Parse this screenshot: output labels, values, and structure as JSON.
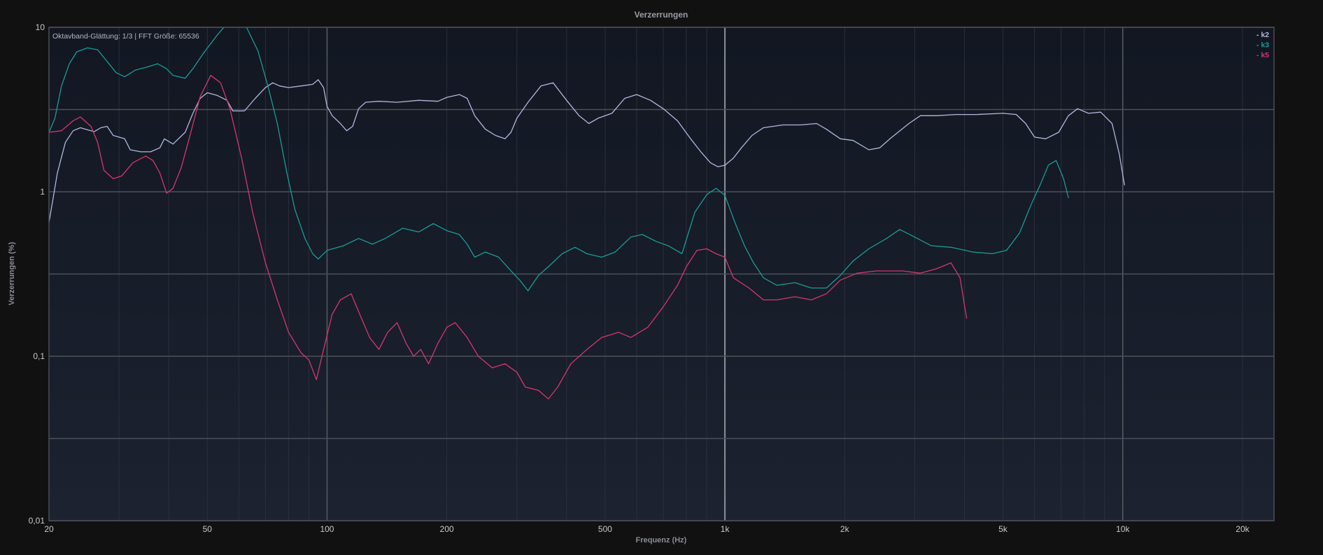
{
  "chart_data": {
    "type": "line",
    "title": "Verzerrungen",
    "subtitle": "Oktavband-Glättung: 1/3 | FFT Größe: 65536",
    "xlabel": "Frequenz (Hz)",
    "ylabel": "Verzerrungen (%)",
    "x_scale": "log",
    "y_scale": "log",
    "xlim": [
      20,
      24000
    ],
    "ylim": [
      0.01,
      10
    ],
    "grid": true,
    "legend_position": "top-right",
    "x_ticks": [
      {
        "value": 20,
        "label": "20"
      },
      {
        "value": 50,
        "label": "50"
      },
      {
        "value": 100,
        "label": "100"
      },
      {
        "value": 200,
        "label": "200"
      },
      {
        "value": 500,
        "label": "500"
      },
      {
        "value": 1000,
        "label": "1k"
      },
      {
        "value": 2000,
        "label": "2k"
      },
      {
        "value": 5000,
        "label": "5k"
      },
      {
        "value": 10000,
        "label": "10k"
      },
      {
        "value": 20000,
        "label": "20k"
      }
    ],
    "y_ticks": [
      {
        "value": 10,
        "label": "10"
      },
      {
        "value": 1,
        "label": "1"
      },
      {
        "value": 0.1,
        "label": "0,1"
      },
      {
        "value": 0.01,
        "label": "0,01"
      }
    ],
    "series": [
      {
        "name": "- k2",
        "color": "#b4b7de",
        "points": [
          [
            20,
            0.65
          ],
          [
            21,
            1.3
          ],
          [
            22,
            2.0
          ],
          [
            23,
            2.35
          ],
          [
            24,
            2.45
          ],
          [
            25,
            2.38
          ],
          [
            26,
            2.32
          ],
          [
            27,
            2.45
          ],
          [
            28,
            2.5
          ],
          [
            29,
            2.2
          ],
          [
            31,
            2.1
          ],
          [
            32,
            1.8
          ],
          [
            34,
            1.75
          ],
          [
            36,
            1.75
          ],
          [
            38,
            1.85
          ],
          [
            39,
            2.1
          ],
          [
            41,
            1.95
          ],
          [
            44,
            2.3
          ],
          [
            46,
            3.0
          ],
          [
            48,
            3.7
          ],
          [
            50,
            4.0
          ],
          [
            53,
            3.85
          ],
          [
            56,
            3.6
          ],
          [
            58,
            3.1
          ],
          [
            62,
            3.1
          ],
          [
            66,
            3.7
          ],
          [
            70,
            4.3
          ],
          [
            73,
            4.6
          ],
          [
            76,
            4.4
          ],
          [
            80,
            4.3
          ],
          [
            86,
            4.4
          ],
          [
            92,
            4.5
          ],
          [
            95,
            4.8
          ],
          [
            98,
            4.3
          ],
          [
            100,
            3.3
          ],
          [
            103,
            2.9
          ],
          [
            108,
            2.6
          ],
          [
            112,
            2.35
          ],
          [
            116,
            2.5
          ],
          [
            120,
            3.2
          ],
          [
            125,
            3.5
          ],
          [
            135,
            3.55
          ],
          [
            150,
            3.5
          ],
          [
            170,
            3.6
          ],
          [
            190,
            3.55
          ],
          [
            200,
            3.75
          ],
          [
            215,
            3.9
          ],
          [
            225,
            3.7
          ],
          [
            235,
            2.9
          ],
          [
            250,
            2.4
          ],
          [
            265,
            2.2
          ],
          [
            280,
            2.1
          ],
          [
            290,
            2.3
          ],
          [
            300,
            2.8
          ],
          [
            320,
            3.5
          ],
          [
            345,
            4.4
          ],
          [
            370,
            4.6
          ],
          [
            400,
            3.6
          ],
          [
            430,
            2.9
          ],
          [
            455,
            2.6
          ],
          [
            480,
            2.8
          ],
          [
            520,
            3.0
          ],
          [
            560,
            3.7
          ],
          [
            600,
            3.9
          ],
          [
            650,
            3.6
          ],
          [
            700,
            3.2
          ],
          [
            760,
            2.7
          ],
          [
            820,
            2.1
          ],
          [
            870,
            1.75
          ],
          [
            920,
            1.5
          ],
          [
            960,
            1.42
          ],
          [
            1000,
            1.45
          ],
          [
            1050,
            1.6
          ],
          [
            1100,
            1.85
          ],
          [
            1170,
            2.2
          ],
          [
            1250,
            2.45
          ],
          [
            1400,
            2.55
          ],
          [
            1550,
            2.55
          ],
          [
            1700,
            2.6
          ],
          [
            1800,
            2.4
          ],
          [
            1950,
            2.1
          ],
          [
            2100,
            2.05
          ],
          [
            2300,
            1.8
          ],
          [
            2450,
            1.85
          ],
          [
            2600,
            2.1
          ],
          [
            2900,
            2.6
          ],
          [
            3100,
            2.9
          ],
          [
            3400,
            2.9
          ],
          [
            3800,
            2.95
          ],
          [
            4300,
            2.95
          ],
          [
            5000,
            3.0
          ],
          [
            5400,
            2.95
          ],
          [
            5700,
            2.6
          ],
          [
            6000,
            2.15
          ],
          [
            6400,
            2.1
          ],
          [
            6900,
            2.3
          ],
          [
            7300,
            2.9
          ],
          [
            7700,
            3.2
          ],
          [
            8200,
            3.0
          ],
          [
            8800,
            3.05
          ],
          [
            9400,
            2.6
          ],
          [
            9800,
            1.7
          ],
          [
            10100,
            1.1
          ]
        ]
      },
      {
        "name": "- k3",
        "color": "#1a9c96",
        "points": [
          [
            20,
            2.3
          ],
          [
            20.7,
            2.8
          ],
          [
            21.5,
            4.4
          ],
          [
            22.5,
            6.0
          ],
          [
            23.5,
            7.1
          ],
          [
            25,
            7.5
          ],
          [
            26.5,
            7.3
          ],
          [
            28,
            6.2
          ],
          [
            29.5,
            5.3
          ],
          [
            31,
            5.0
          ],
          [
            33,
            5.5
          ],
          [
            35,
            5.7
          ],
          [
            37.5,
            6.0
          ],
          [
            39.5,
            5.6
          ],
          [
            41,
            5.1
          ],
          [
            44,
            4.9
          ],
          [
            46,
            5.6
          ],
          [
            49,
            7.0
          ],
          [
            53,
            9.0
          ],
          [
            56,
            10.5
          ],
          [
            60,
            11.5
          ],
          [
            63,
            9.8
          ],
          [
            67,
            7.2
          ],
          [
            71,
            4.4
          ],
          [
            75,
            2.6
          ],
          [
            79,
            1.35
          ],
          [
            83,
            0.78
          ],
          [
            88,
            0.52
          ],
          [
            92,
            0.42
          ],
          [
            95,
            0.39
          ],
          [
            100,
            0.44
          ],
          [
            110,
            0.47
          ],
          [
            120,
            0.52
          ],
          [
            130,
            0.48
          ],
          [
            140,
            0.52
          ],
          [
            155,
            0.6
          ],
          [
            170,
            0.57
          ],
          [
            185,
            0.64
          ],
          [
            200,
            0.58
          ],
          [
            215,
            0.55
          ],
          [
            225,
            0.48
          ],
          [
            235,
            0.4
          ],
          [
            250,
            0.43
          ],
          [
            270,
            0.4
          ],
          [
            290,
            0.33
          ],
          [
            305,
            0.29
          ],
          [
            320,
            0.25
          ],
          [
            340,
            0.31
          ],
          [
            360,
            0.35
          ],
          [
            390,
            0.42
          ],
          [
            420,
            0.46
          ],
          [
            450,
            0.42
          ],
          [
            490,
            0.4
          ],
          [
            530,
            0.43
          ],
          [
            580,
            0.53
          ],
          [
            620,
            0.55
          ],
          [
            670,
            0.5
          ],
          [
            720,
            0.47
          ],
          [
            780,
            0.42
          ],
          [
            840,
            0.75
          ],
          [
            900,
            0.96
          ],
          [
            950,
            1.05
          ],
          [
            1000,
            0.95
          ],
          [
            1060,
            0.65
          ],
          [
            1120,
            0.47
          ],
          [
            1180,
            0.37
          ],
          [
            1250,
            0.3
          ],
          [
            1350,
            0.27
          ],
          [
            1500,
            0.28
          ],
          [
            1650,
            0.26
          ],
          [
            1800,
            0.26
          ],
          [
            1950,
            0.31
          ],
          [
            2100,
            0.38
          ],
          [
            2300,
            0.45
          ],
          [
            2550,
            0.52
          ],
          [
            2750,
            0.59
          ],
          [
            3000,
            0.53
          ],
          [
            3300,
            0.47
          ],
          [
            3700,
            0.46
          ],
          [
            4200,
            0.43
          ],
          [
            4700,
            0.42
          ],
          [
            5100,
            0.44
          ],
          [
            5500,
            0.56
          ],
          [
            5900,
            0.85
          ],
          [
            6200,
            1.1
          ],
          [
            6500,
            1.45
          ],
          [
            6800,
            1.55
          ],
          [
            7100,
            1.2
          ],
          [
            7300,
            0.92
          ]
        ]
      },
      {
        "name": "- k5",
        "color": "#d4376e",
        "points": [
          [
            20,
            2.3
          ],
          [
            21.5,
            2.35
          ],
          [
            23,
            2.7
          ],
          [
            24,
            2.85
          ],
          [
            25.5,
            2.5
          ],
          [
            26.5,
            2.0
          ],
          [
            27.5,
            1.35
          ],
          [
            29,
            1.2
          ],
          [
            30.5,
            1.25
          ],
          [
            32.5,
            1.5
          ],
          [
            35,
            1.65
          ],
          [
            36.5,
            1.55
          ],
          [
            38,
            1.3
          ],
          [
            39.5,
            0.98
          ],
          [
            41,
            1.05
          ],
          [
            43,
            1.4
          ],
          [
            45,
            2.1
          ],
          [
            48,
            3.8
          ],
          [
            51,
            5.1
          ],
          [
            54,
            4.6
          ],
          [
            57,
            3.2
          ],
          [
            61,
            1.6
          ],
          [
            65,
            0.75
          ],
          [
            70,
            0.37
          ],
          [
            75,
            0.22
          ],
          [
            80,
            0.14
          ],
          [
            86,
            0.105
          ],
          [
            90,
            0.095
          ],
          [
            94,
            0.072
          ],
          [
            98,
            0.11
          ],
          [
            103,
            0.18
          ],
          [
            108,
            0.22
          ],
          [
            115,
            0.24
          ],
          [
            122,
            0.17
          ],
          [
            128,
            0.13
          ],
          [
            135,
            0.11
          ],
          [
            142,
            0.14
          ],
          [
            150,
            0.16
          ],
          [
            158,
            0.12
          ],
          [
            165,
            0.1
          ],
          [
            172,
            0.11
          ],
          [
            180,
            0.09
          ],
          [
            190,
            0.12
          ],
          [
            200,
            0.15
          ],
          [
            210,
            0.16
          ],
          [
            225,
            0.13
          ],
          [
            240,
            0.1
          ],
          [
            260,
            0.085
          ],
          [
            280,
            0.09
          ],
          [
            300,
            0.08
          ],
          [
            315,
            0.065
          ],
          [
            340,
            0.062
          ],
          [
            360,
            0.055
          ],
          [
            380,
            0.065
          ],
          [
            410,
            0.09
          ],
          [
            450,
            0.11
          ],
          [
            490,
            0.13
          ],
          [
            540,
            0.14
          ],
          [
            580,
            0.13
          ],
          [
            640,
            0.15
          ],
          [
            700,
            0.2
          ],
          [
            760,
            0.27
          ],
          [
            800,
            0.35
          ],
          [
            850,
            0.44
          ],
          [
            900,
            0.45
          ],
          [
            950,
            0.42
          ],
          [
            1000,
            0.4
          ],
          [
            1050,
            0.3
          ],
          [
            1150,
            0.26
          ],
          [
            1250,
            0.22
          ],
          [
            1350,
            0.22
          ],
          [
            1500,
            0.23
          ],
          [
            1650,
            0.22
          ],
          [
            1800,
            0.24
          ],
          [
            1950,
            0.29
          ],
          [
            2150,
            0.32
          ],
          [
            2400,
            0.33
          ],
          [
            2800,
            0.33
          ],
          [
            3100,
            0.32
          ],
          [
            3400,
            0.34
          ],
          [
            3700,
            0.37
          ],
          [
            3900,
            0.3
          ],
          [
            4050,
            0.17
          ]
        ]
      }
    ]
  }
}
